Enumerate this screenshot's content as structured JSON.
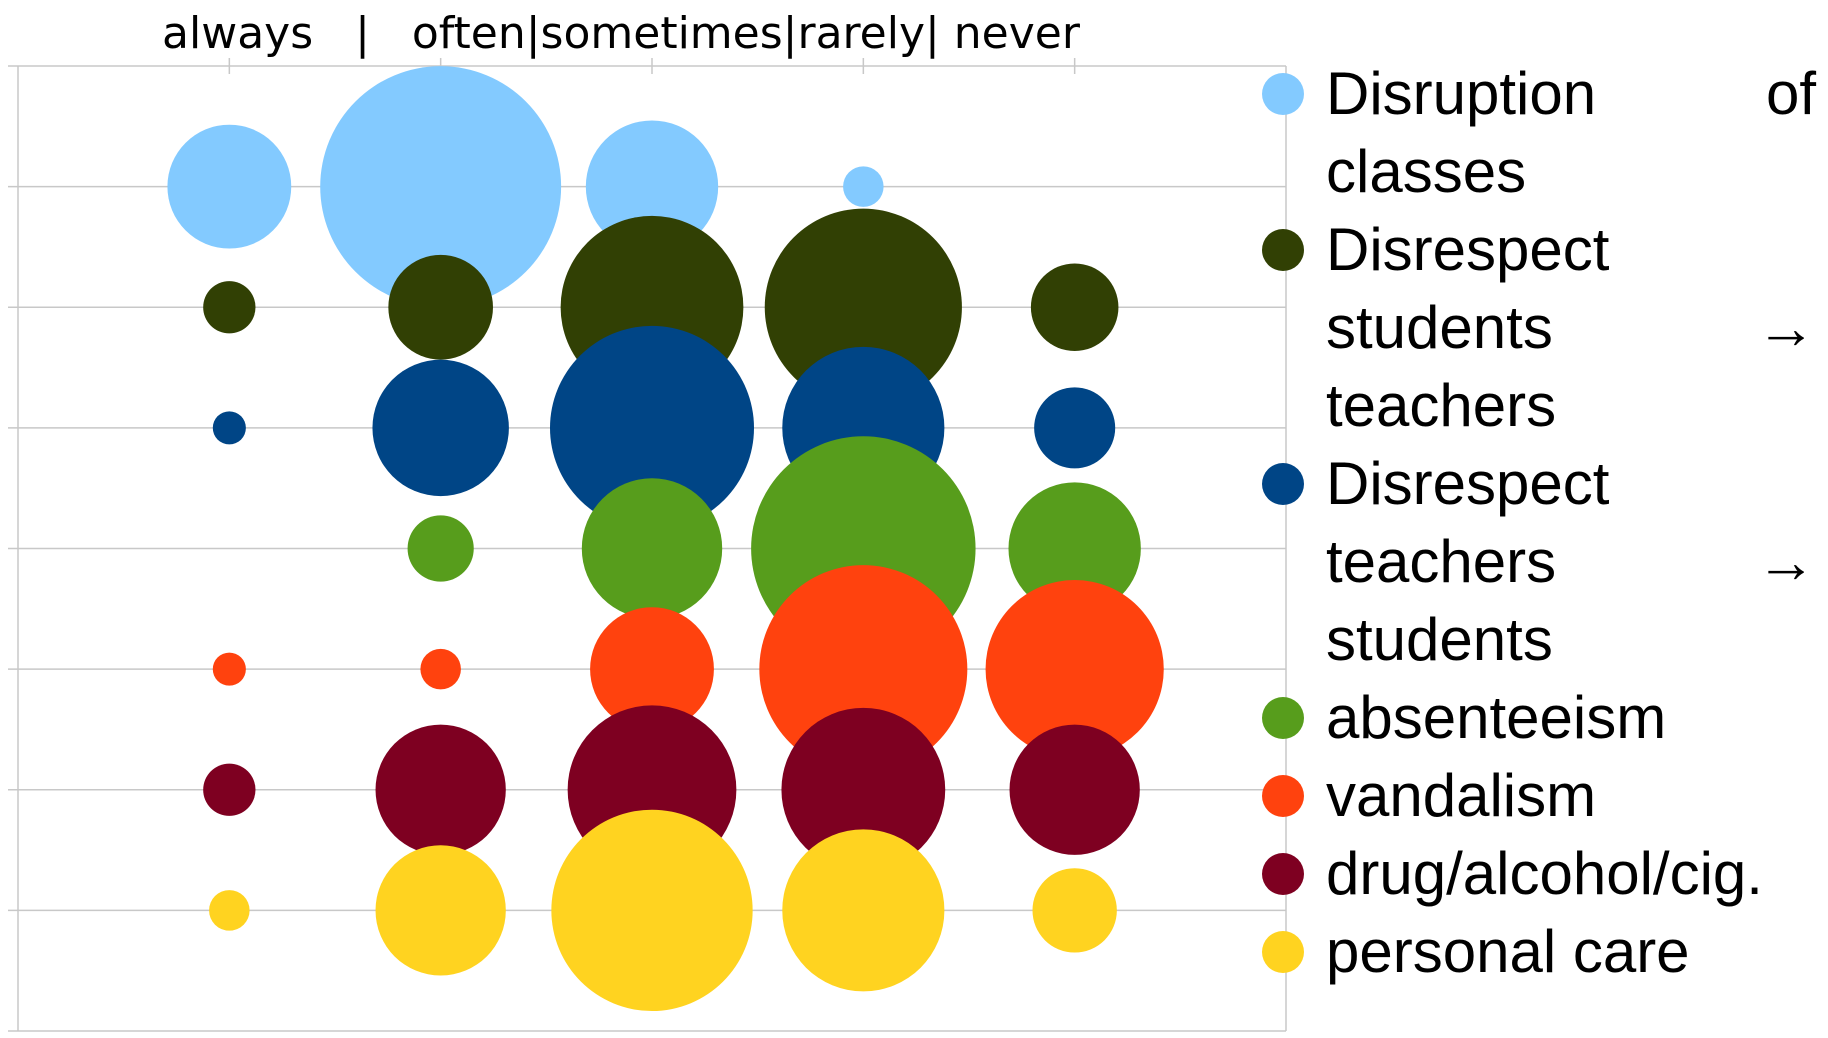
{
  "chart_data": {
    "type": "bubble",
    "title": "always   |   often|sometimes|rarely| never",
    "x": [
      1,
      2,
      3,
      4,
      5
    ],
    "xlim": [
      0,
      6
    ],
    "xticks": [
      1,
      2,
      3,
      4,
      5
    ],
    "ylim": [
      0,
      8
    ],
    "yticks": [
      0,
      1,
      2,
      3,
      4,
      5,
      6,
      7,
      8
    ],
    "grid": true,
    "legend": "right",
    "series": [
      {
        "name": "Disruption of classes",
        "color": "#83caff",
        "y": [
          7,
          7,
          7,
          7,
          7
        ],
        "sizes": [
          28,
          106,
          32,
          3,
          0
        ]
      },
      {
        "name": "Disrespect students → teachers",
        "color": "#314004",
        "y": [
          6,
          6,
          6,
          6,
          6
        ],
        "sizes": [
          5,
          20,
          61,
          71,
          14
        ]
      },
      {
        "name": "Disrespect teachers → students",
        "color": "#004586",
        "y": [
          5,
          5,
          5,
          5,
          5
        ],
        "sizes": [
          2,
          34,
          76,
          48,
          12
        ]
      },
      {
        "name": "absenteeism",
        "color": "#579d1c",
        "y": [
          4,
          4,
          4,
          4,
          4
        ],
        "sizes": [
          0,
          8,
          36,
          92,
          32
        ]
      },
      {
        "name": "vandalism",
        "color": "#ff420e",
        "y": [
          3,
          3,
          3,
          3,
          3
        ],
        "sizes": [
          2,
          3,
          28,
          79,
          58
        ]
      },
      {
        "name": "drug/alcohol/cig.",
        "color": "#7e0021",
        "y": [
          2,
          2,
          2,
          2,
          2
        ],
        "sizes": [
          5,
          31,
          52,
          49,
          31
        ]
      },
      {
        "name": "personal care",
        "color": "#ffd320",
        "y": [
          1,
          1,
          1,
          1,
          1
        ],
        "sizes": [
          3,
          31,
          74,
          48,
          13
        ]
      }
    ]
  }
}
